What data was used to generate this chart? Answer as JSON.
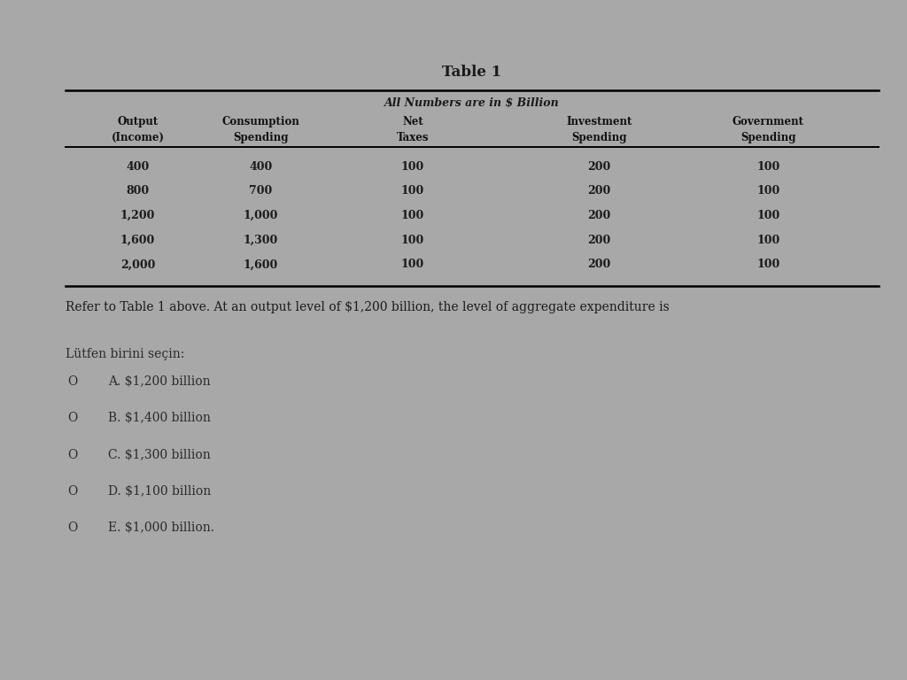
{
  "title": "Table 1",
  "subtitle": "All Numbers are in $ Billion",
  "outer_bg": "#a8a8a8",
  "card_bg": "#d8d4ce",
  "table_headers_row1": [
    "Output",
    "Consumption",
    "Net",
    "Investment",
    "Government"
  ],
  "table_headers_row2": [
    "(Income)",
    "Spending",
    "Taxes",
    "Spending",
    "Spending"
  ],
  "table_data": [
    [
      "400",
      "400",
      "100",
      "200",
      "100"
    ],
    [
      "800",
      "700",
      "100",
      "200",
      "100"
    ],
    [
      "1,200",
      "1,000",
      "100",
      "200",
      "100"
    ],
    [
      "1,600",
      "1,300",
      "100",
      "200",
      "100"
    ],
    [
      "2,000",
      "1,600",
      "100",
      "200",
      "100"
    ]
  ],
  "question": "Refer to Table 1 above. At an output level of $1,200 billion, the level of aggregate expenditure is",
  "prompt": "Lütfen birini seçin:",
  "options": [
    [
      "O",
      "A. $1,200 billion"
    ],
    [
      "O",
      "B. $1,400 billion"
    ],
    [
      "O",
      "C. $1,300 billion"
    ],
    [
      "O",
      "D. $1,100 billion"
    ],
    [
      "O",
      "E. $1,000 billion."
    ]
  ],
  "text_color": "#1a1a1a",
  "header_color": "#111111",
  "option_color": "#2a2a2a"
}
